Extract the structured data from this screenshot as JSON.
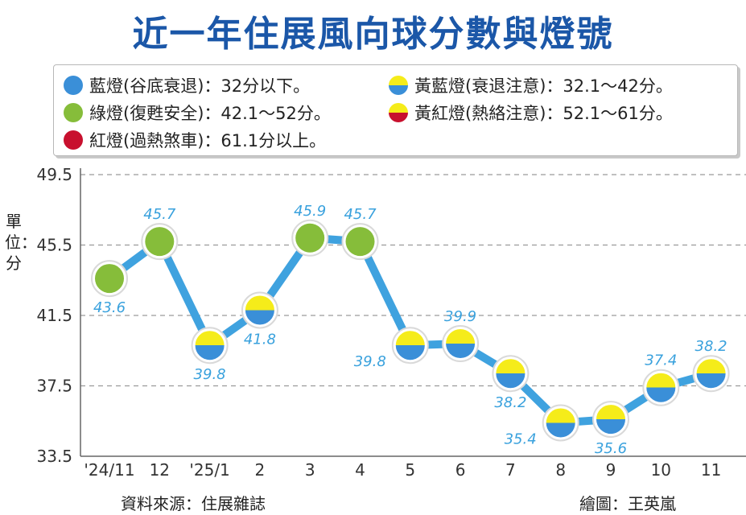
{
  "title": "近一年住展風向球分數與燈號",
  "legend": [
    {
      "label": "藍燈(谷底衰退)：32分以下。",
      "color": "#3a8fd8",
      "color2": "#3a8fd8"
    },
    {
      "label": "黃藍燈(衰退注意)：32.1～42分。",
      "color": "#f5ec1a",
      "color2": "#3a8fd8"
    },
    {
      "label": "綠燈(復甦安全)：42.1～52分。",
      "color": "#86bd3a",
      "color2": "#86bd3a"
    },
    {
      "label": "黃紅燈(熱絡注意)：52.1～61分。",
      "color": "#f5ec1a",
      "color2": "#c8102e"
    },
    {
      "label": "紅燈(過熱煞車)：61.1分以上。",
      "color": "#c8102e",
      "color2": "#c8102e"
    }
  ],
  "unit_label": "單位：分",
  "source": "資料來源：住展雜誌",
  "credit": "繪圖：王英嵐",
  "colors": {
    "line": "#3fa2df",
    "grid": "#9a9a9a",
    "label": "#39a1dd",
    "green": "#86bd3a",
    "yellow": "#f5ec1a",
    "blue": "#3a8fd8"
  },
  "chart_data": {
    "type": "line",
    "title": "近一年住展風向球分數與燈號",
    "ylabel": "單位：分",
    "categories": [
      "'24/11",
      "12",
      "'25/1",
      "2",
      "3",
      "4",
      "5",
      "6",
      "7",
      "8",
      "9",
      "10",
      "11"
    ],
    "values": [
      43.6,
      45.7,
      39.8,
      41.8,
      45.9,
      45.7,
      39.8,
      39.9,
      38.2,
      35.4,
      35.6,
      37.4,
      38.2
    ],
    "labels": [
      "43.6",
      "45.7",
      "39.8",
      "41.8",
      "45.9",
      "45.7",
      "39.8",
      "39.9",
      "38.2",
      "35.4",
      "35.6",
      "37.4",
      "38.2"
    ],
    "label_position": [
      "below",
      "above",
      "below",
      "below",
      "above",
      "above",
      "left",
      "above",
      "below",
      "left",
      "below",
      "above",
      "above"
    ],
    "lights": [
      "green",
      "green",
      "yellow-blue",
      "yellow-blue",
      "green",
      "green",
      "yellow-blue",
      "yellow-blue",
      "yellow-blue",
      "yellow-blue",
      "yellow-blue",
      "yellow-blue",
      "yellow-blue"
    ],
    "yticks": [
      "49.5",
      "45.5",
      "41.5",
      "37.5",
      "33.5"
    ],
    "ylim": [
      33.5,
      49.5
    ],
    "grid": true
  }
}
